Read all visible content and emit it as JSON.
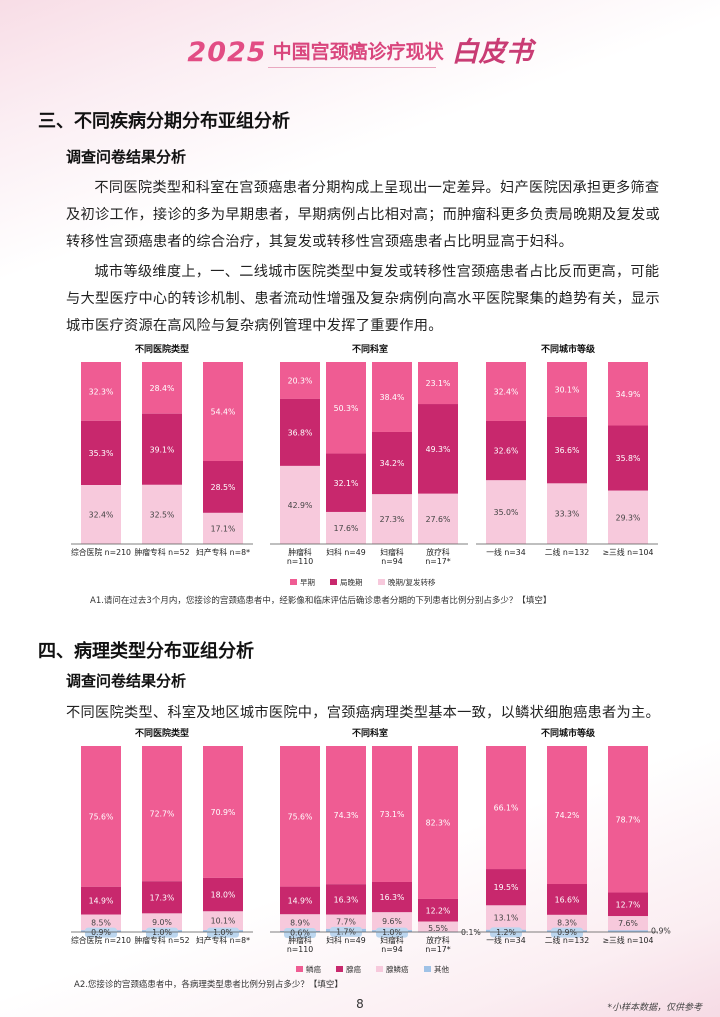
{
  "header": {
    "year": "2025",
    "name": "中国宫颈癌诊疗现状",
    "wb": "白皮书"
  },
  "section3": {
    "heading": "三、不同疾病分期分布亚组分析",
    "subheading": "调查问卷结果分析",
    "paragraphs": [
      "不同医院类型和科室在宫颈癌患者分期构成上呈现出一定差异。妇产医院因承担更多筛查及初诊工作，接诊的多为早期患者，早期病例占比相对高；而肿瘤科更多负责局晚期及复发或转移性宫颈癌患者的综合治疗，其复发或转移性宫颈癌患者占比明显高于妇科。",
      "城市等级维度上，一、二线城市医院类型中复发或转移性宫颈癌患者占比反而更高，可能与大型医疗中心的转诊机制、患者流动性增强及复杂病例向高水平医院聚集的趋势有关，显示城市医疗资源在高风险与复杂病例管理中发挥了重要作用。"
    ],
    "note": "A1.请问在过去3个月内，您接诊的宫颈癌患者中，经影像和临床评估后确诊患者分期的下列患者比例分别占多少？【填空】"
  },
  "section4": {
    "heading": "四、病理类型分布亚组分析",
    "subheading": "调查问卷结果分析",
    "paragraph": "不同医院类型、科室及地区城市医院中，宫颈癌病理类型基本一致，以鳞状细胞癌患者为主。",
    "note": "A2.您接诊的宫颈癌患者中，各病理类型患者比例分别占多少？【填空】"
  },
  "page_number": "8",
  "footnote": "*小样本数据，仅供参考",
  "colors": {
    "pink": "#ef5c93",
    "magenta": "#c8286d",
    "light": "#f7c9dc",
    "blue": "#9fc2e6"
  },
  "chart_data": [
    {
      "type": "bar",
      "stacked": true,
      "groups": [
        {
          "title": "不同医院类型",
          "categories": [
            [
              "综合医院 n=210"
            ],
            [
              "肿瘤专科 n=52"
            ],
            [
              "妇产专科 n=8*"
            ]
          ]
        },
        {
          "title": "不同科室",
          "categories": [
            [
              "肿瘤科",
              "n=110"
            ],
            [
              "妇科 n=49"
            ],
            [
              "妇瘤科",
              "n=94"
            ],
            [
              "放疗科",
              "n=17*"
            ]
          ]
        },
        {
          "title": "不同城市等级",
          "categories": [
            [
              "一线 n=34"
            ],
            [
              "二线 n=132"
            ],
            [
              "≥三线 n=104"
            ]
          ]
        }
      ],
      "series": [
        {
          "name": "早期",
          "color": "#ef5c93",
          "values": [
            [
              32.3,
              28.4,
              54.4
            ],
            [
              20.3,
              50.3,
              38.4,
              23.1
            ],
            [
              32.4,
              30.1,
              34.9
            ]
          ]
        },
        {
          "name": "局晚期",
          "color": "#c8286d",
          "values": [
            [
              35.3,
              39.1,
              28.5
            ],
            [
              36.8,
              32.1,
              34.2,
              49.3
            ],
            [
              32.6,
              36.6,
              35.8
            ]
          ]
        },
        {
          "name": "晚期/复发转移",
          "color": "#f7c9dc",
          "values": [
            [
              32.4,
              32.5,
              17.1
            ],
            [
              42.9,
              17.6,
              27.3,
              27.6
            ],
            [
              35.0,
              33.3,
              29.3
            ]
          ]
        }
      ],
      "labels": [
        [
          [
            "32.3%",
            "35.3%",
            "32.4%"
          ],
          [
            "28.4%",
            "39.1%",
            "32.5%"
          ],
          [
            "54.4%",
            "28.5%",
            "17.1%"
          ]
        ],
        [
          [
            "20.3%",
            "36.8%",
            "42.9%"
          ],
          [
            "50.3%",
            "32.1%",
            "17.6%"
          ],
          [
            "38.4%",
            "34.2%",
            "27.3%"
          ],
          [
            "23.1%",
            "49.3%",
            "27.6%"
          ]
        ],
        [
          [
            "32.4%",
            "32.6%",
            "35.0%"
          ],
          [
            "30.1%",
            "36.6%",
            "33.3%"
          ],
          [
            "34.9%",
            "35.8%",
            "29.3%"
          ]
        ]
      ]
    },
    {
      "type": "bar",
      "stacked": true,
      "groups": [
        {
          "title": "不同医院类型",
          "categories": [
            [
              "综合医院 n=210"
            ],
            [
              "肿瘤专科 n=52"
            ],
            [
              "妇产专科 n=8*"
            ]
          ]
        },
        {
          "title": "不同科室",
          "categories": [
            [
              "肿瘤科",
              "n=110"
            ],
            [
              "妇科 n=49"
            ],
            [
              "妇瘤科",
              "n=94"
            ],
            [
              "放疗科",
              "n=17*"
            ]
          ]
        },
        {
          "title": "不同城市等级",
          "categories": [
            [
              "一线 n=34"
            ],
            [
              "二线 n=132"
            ],
            [
              "≥三线 n=104"
            ]
          ]
        }
      ],
      "series": [
        {
          "name": "鳞癌",
          "color": "#ef5c93",
          "values": [
            [
              75.6,
              72.7,
              70.9
            ],
            [
              75.6,
              74.3,
              73.1,
              82.3
            ],
            [
              66.1,
              74.2,
              78.7
            ]
          ]
        },
        {
          "name": "腺癌",
          "color": "#c8286d",
          "values": [
            [
              14.9,
              17.3,
              18.0
            ],
            [
              14.9,
              16.3,
              16.3,
              12.2
            ],
            [
              19.5,
              16.6,
              12.7
            ]
          ]
        },
        {
          "name": "腺鳞癌",
          "color": "#f7c9dc",
          "values": [
            [
              8.5,
              9.0,
              10.1
            ],
            [
              8.9,
              7.7,
              9.6,
              5.5
            ],
            [
              13.1,
              8.3,
              7.6
            ]
          ]
        },
        {
          "name": "其他",
          "color": "#9fc2e6",
          "values": [
            [
              0.9,
              1.0,
              1.0
            ],
            [
              0.6,
              1.7,
              1.0,
              0.1
            ],
            [
              1.2,
              0.9,
              0.9
            ]
          ]
        }
      ],
      "labels": [
        [
          [
            "75.6%",
            "14.9%",
            "8.5%",
            "0.9%"
          ],
          [
            "72.7%",
            "17.3%",
            "9.0%",
            "1.0%"
          ],
          [
            "70.9%",
            "18.0%",
            "10.1%",
            "1.0%"
          ]
        ],
        [
          [
            "75.6%",
            "14.9%",
            "8.9%",
            "0.6%"
          ],
          [
            "74.3%",
            "16.3%",
            "7.7%",
            "1.7%"
          ],
          [
            "73.1%",
            "16.3%",
            "9.6%",
            "1.0%"
          ],
          [
            "82.3%",
            "12.2%",
            "5.5%",
            "0.1%"
          ]
        ],
        [
          [
            "66.1%",
            "19.5%",
            "13.1%",
            "1.2%"
          ],
          [
            "74.2%",
            "16.6%",
            "8.3%",
            "0.9%"
          ],
          [
            "78.7%",
            "12.7%",
            "7.6%",
            "0.9%"
          ]
        ]
      ]
    }
  ]
}
